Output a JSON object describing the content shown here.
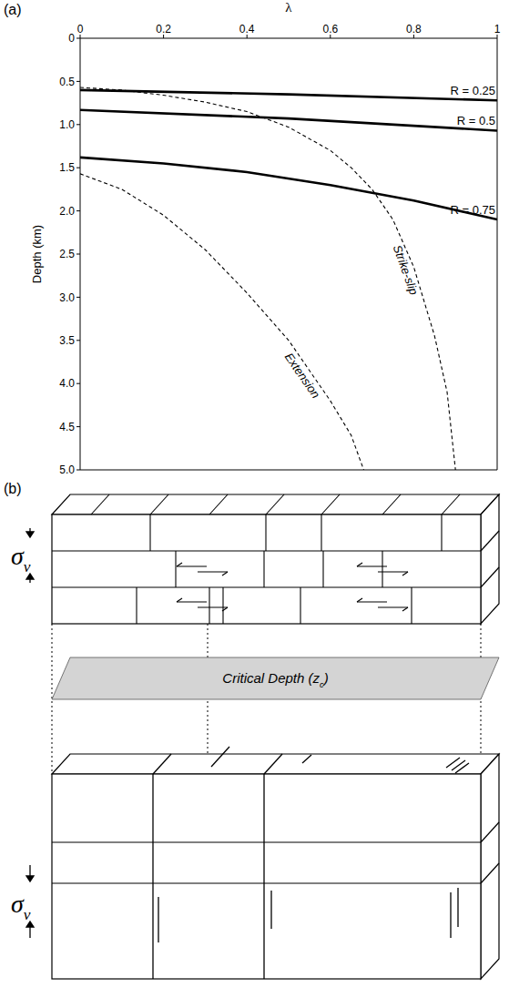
{
  "chart_data": {
    "panel_label": "(a)",
    "type": "line",
    "x_label": "λ",
    "y_label": "Depth (km)",
    "xlim": [
      0,
      1
    ],
    "ylim": [
      5,
      0
    ],
    "xticks": [
      0,
      0.2,
      0.4,
      0.6,
      0.8,
      1
    ],
    "yticks": [
      0,
      0.5,
      {
        "value": 1,
        "label": "1.0"
      },
      1.5,
      {
        "value": 2,
        "label": "2.0"
      },
      2.5,
      {
        "value": 3,
        "label": "3.0"
      },
      3.5,
      {
        "value": 4,
        "label": "4.0"
      },
      4.5,
      {
        "value": 5,
        "label": "5.0"
      }
    ],
    "grid": false,
    "series": [
      {
        "name": "R = 0.25",
        "color": "#000000",
        "line_style": "solid",
        "x": [
          0,
          0.5,
          1
        ],
        "values": [
          0.6,
          0.65,
          0.72
        ]
      },
      {
        "name": "R = 0.5",
        "color": "#000000",
        "line_style": "solid",
        "x": [
          0,
          0.5,
          1
        ],
        "values": [
          0.83,
          0.93,
          1.07
        ]
      },
      {
        "name": "R = 0.75",
        "color": "#000000",
        "line_style": "solid",
        "x": [
          0,
          0.2,
          0.4,
          0.6,
          0.8,
          1
        ],
        "values": [
          1.38,
          1.45,
          1.55,
          1.7,
          1.88,
          2.1
        ]
      },
      {
        "name": "Strike-slip",
        "color": "#000000",
        "line_style": "dashed",
        "x": [
          0,
          0.1,
          0.2,
          0.3,
          0.4,
          0.5,
          0.6,
          0.65,
          0.7,
          0.75,
          0.8,
          0.85,
          0.88,
          0.9
        ],
        "values": [
          0.57,
          0.6,
          0.66,
          0.74,
          0.85,
          1.03,
          1.3,
          1.5,
          1.75,
          2.1,
          2.65,
          3.45,
          4.1,
          5.0
        ]
      },
      {
        "name": "Extension",
        "color": "#000000",
        "line_style": "dashed",
        "x": [
          0,
          0.1,
          0.2,
          0.3,
          0.4,
          0.5,
          0.55,
          0.6,
          0.65,
          0.68
        ],
        "values": [
          1.57,
          1.75,
          2.05,
          2.45,
          2.95,
          3.5,
          3.85,
          4.2,
          4.6,
          5.0
        ]
      }
    ]
  },
  "diagram": {
    "panel_label": "(b)",
    "stress_labels": [
      {
        "text": "σ",
        "subscript": "v"
      },
      {
        "text": "σ",
        "subscript": "v"
      }
    ],
    "plane_label": {
      "text": "Critical Depth (z",
      "subscript": "c",
      "after": ")"
    }
  }
}
